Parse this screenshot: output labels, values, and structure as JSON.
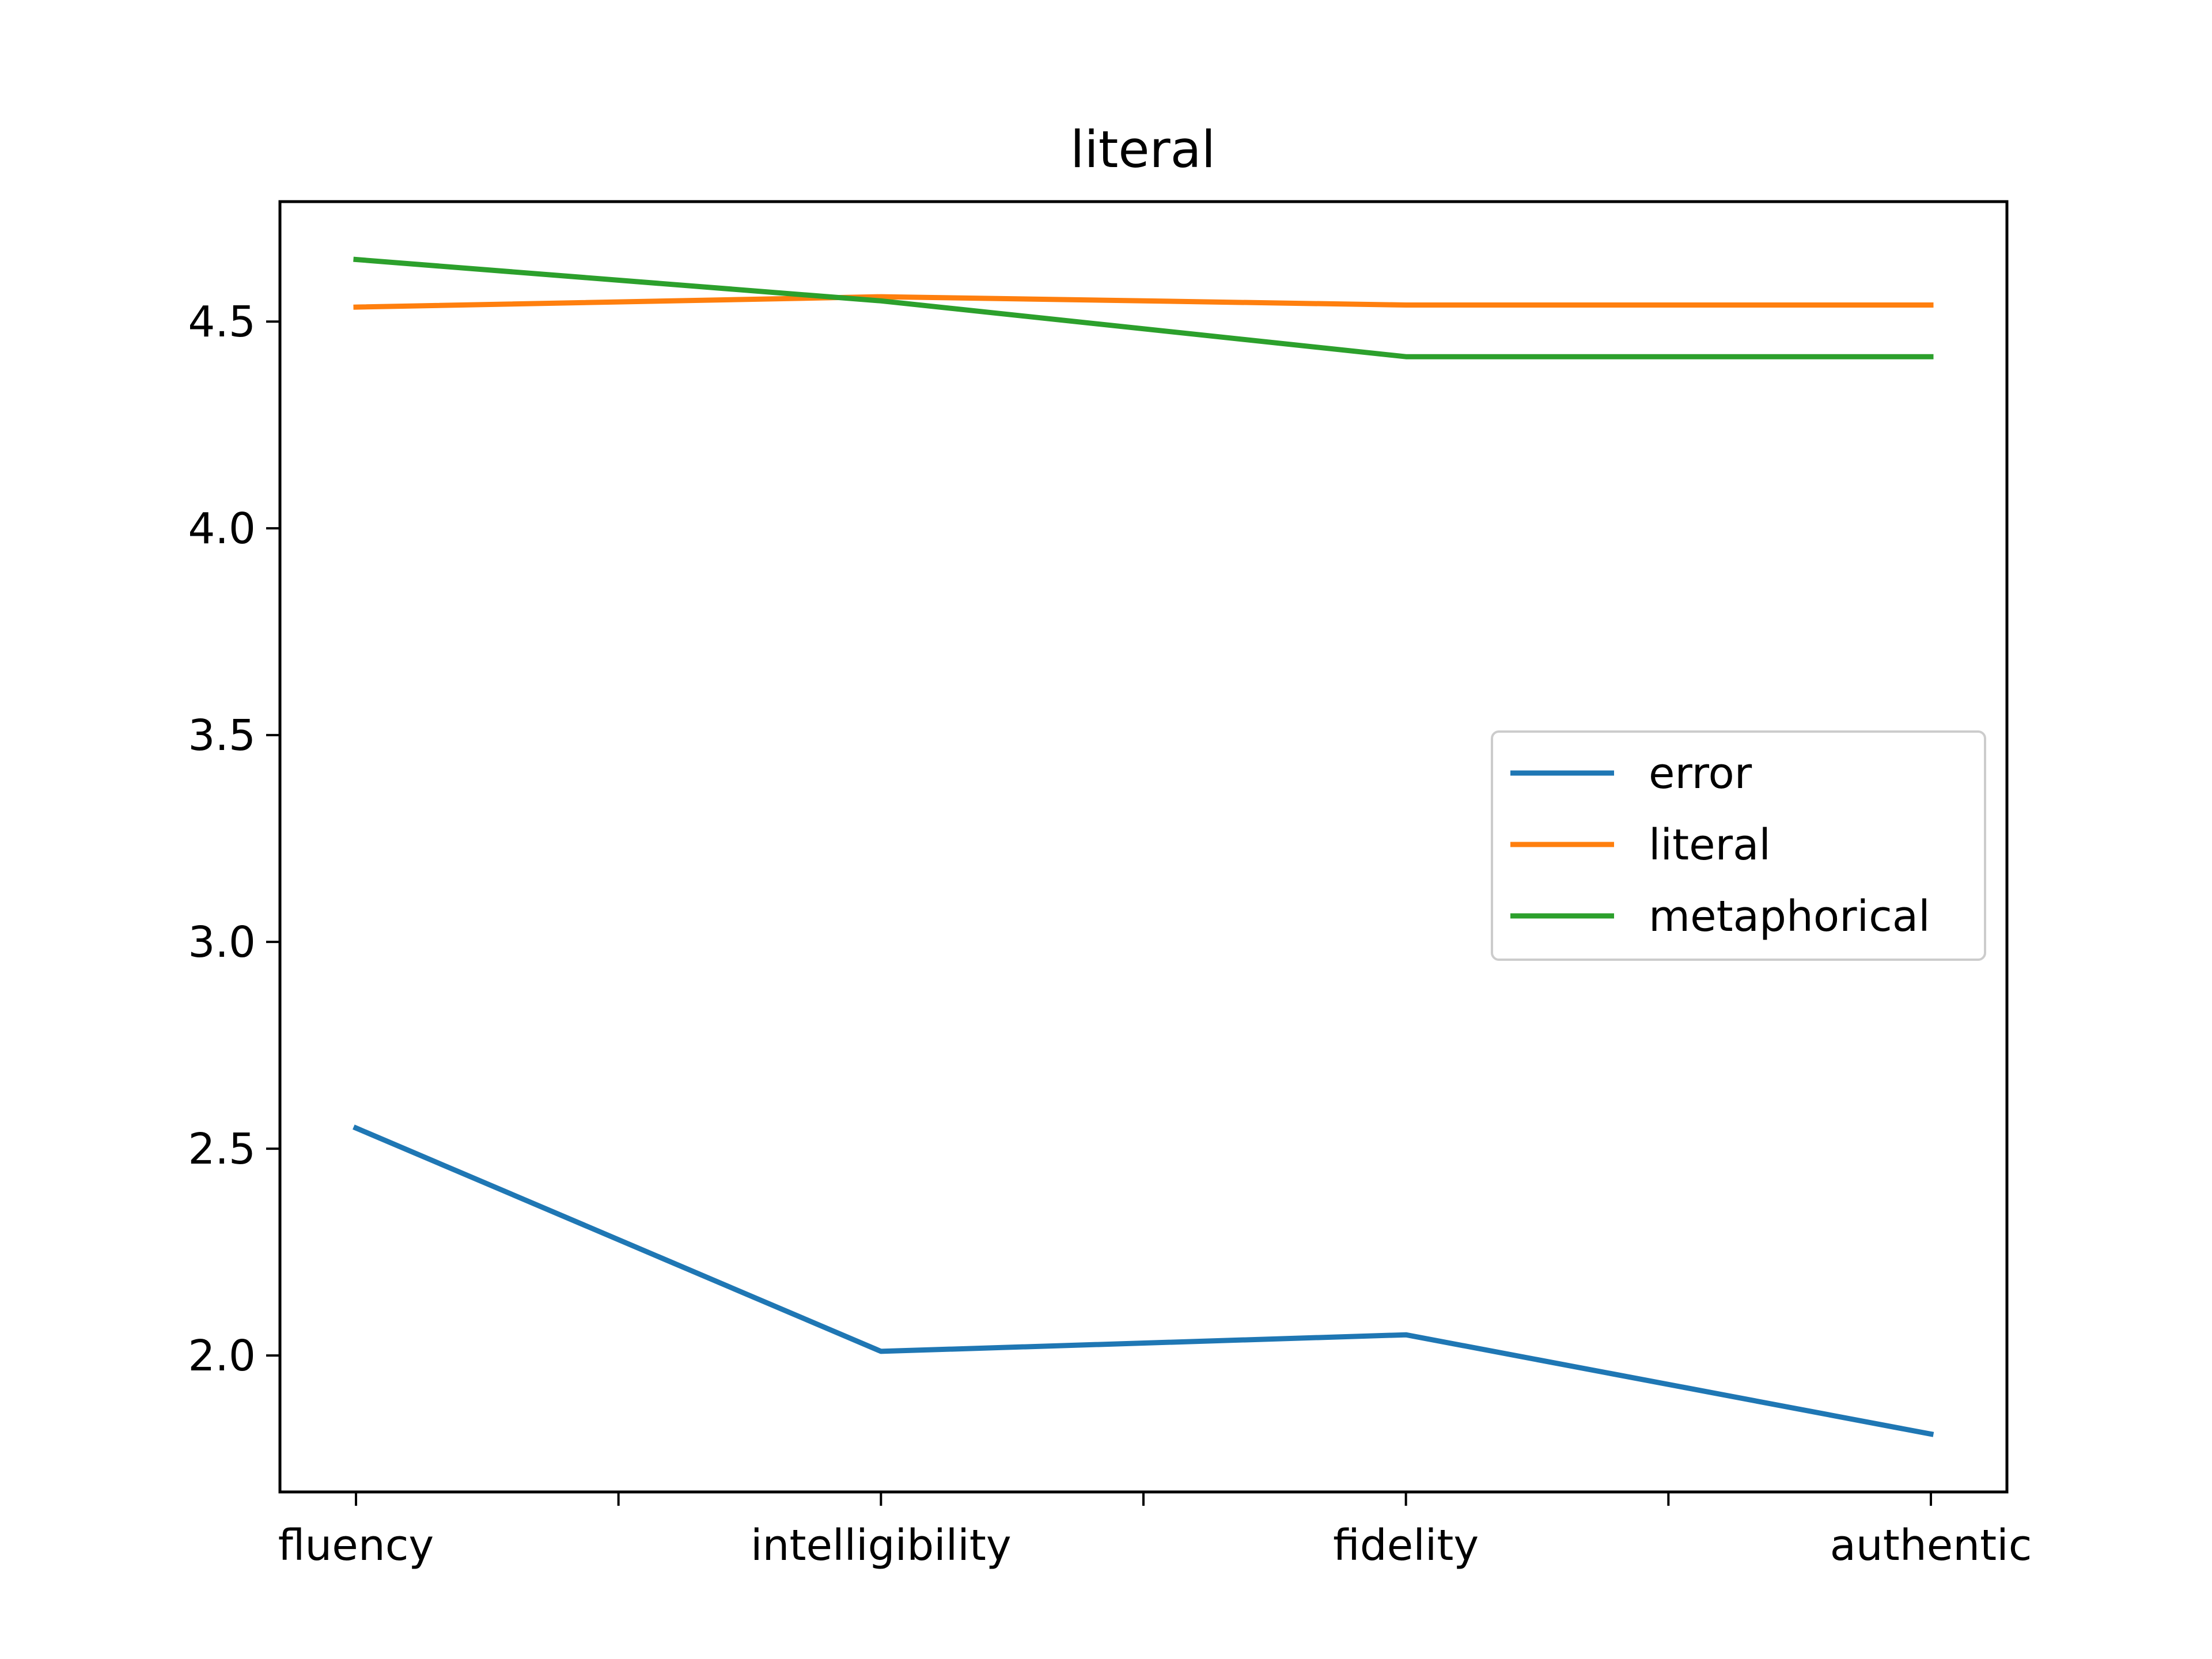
{
  "chart_data": {
    "type": "line",
    "title": "literal",
    "xlabel": "",
    "ylabel": "",
    "categories": [
      "fluency",
      "intelligibility",
      "fidelity",
      "authentic"
    ],
    "minor_ticks": 3,
    "ylim": [
      1.67,
      4.79
    ],
    "yticks": [
      2.0,
      2.5,
      3.0,
      3.5,
      4.0,
      4.5
    ],
    "ytick_labels": [
      "2.0",
      "2.5",
      "3.0",
      "3.5",
      "4.0",
      "4.5"
    ],
    "grid": false,
    "legend_position": "center-right",
    "series": [
      {
        "name": "error",
        "color": "#1f77b4",
        "values": [
          2.55,
          2.01,
          2.05,
          1.81
        ]
      },
      {
        "name": "literal",
        "color": "#ff7f0e",
        "values": [
          4.535,
          4.56,
          4.54,
          4.54
        ]
      },
      {
        "name": "metaphorical",
        "color": "#2ca02c",
        "values": [
          4.65,
          4.55,
          4.415,
          4.415
        ]
      }
    ]
  }
}
